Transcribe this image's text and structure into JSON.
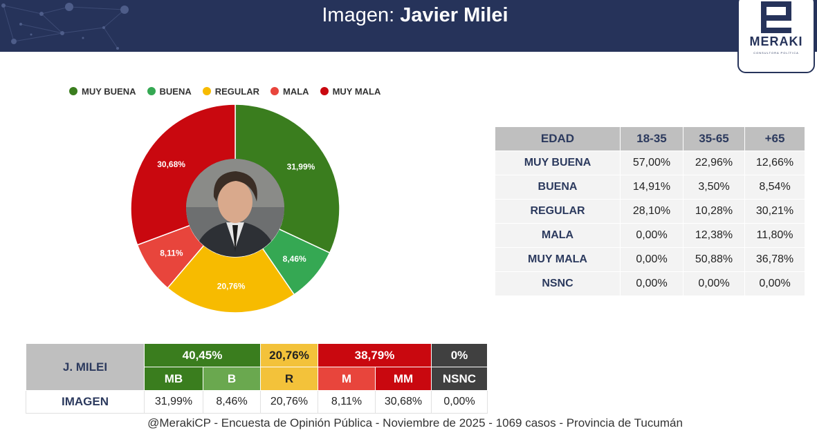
{
  "header": {
    "title_prefix": "Imagen:",
    "title_name": "Javier Milei"
  },
  "logo": {
    "text": "MERAKI",
    "sub": "CONSULTORA POLÍTICA"
  },
  "colors": {
    "muy_buena": "#3a7d1e",
    "buena": "#35a853",
    "regular": "#f7bb00",
    "mala": "#e8453c",
    "muy_mala": "#c9080f",
    "nsnc": "#404040",
    "navy": "#26335a"
  },
  "chart_data": {
    "type": "pie",
    "legend_position": "top",
    "series": [
      {
        "name": "MUY BUENA",
        "value": 31.99,
        "label": "31,99%",
        "color": "#3a7d1e"
      },
      {
        "name": "BUENA",
        "value": 8.46,
        "label": "8,46%",
        "color": "#35a853"
      },
      {
        "name": "REGULAR",
        "value": 20.76,
        "label": "20,76%",
        "color": "#f7bb00"
      },
      {
        "name": "MALA",
        "value": 8.11,
        "label": "8,11%",
        "color": "#e8453c"
      },
      {
        "name": "MUY MALA",
        "value": 30.68,
        "label": "30,68%",
        "color": "#c9080f"
      }
    ]
  },
  "age_table": {
    "headers": [
      "EDAD",
      "18-35",
      "35-65",
      "+65"
    ],
    "rows": [
      {
        "label": "MUY BUENA",
        "values": [
          "57,00%",
          "22,96%",
          "12,66%"
        ]
      },
      {
        "label": "BUENA",
        "values": [
          "14,91%",
          "3,50%",
          "8,54%"
        ]
      },
      {
        "label": "REGULAR",
        "values": [
          "28,10%",
          "10,28%",
          "30,21%"
        ]
      },
      {
        "label": "MALA",
        "values": [
          "0,00%",
          "12,38%",
          "11,80%"
        ]
      },
      {
        "label": "MUY MALA",
        "values": [
          "0,00%",
          "50,88%",
          "36,78%"
        ]
      },
      {
        "label": "NSNC",
        "values": [
          "0,00%",
          "0,00%",
          "0,00%"
        ]
      }
    ]
  },
  "summary_table": {
    "name": "J. MILEI",
    "groups": {
      "positive": "40,45%",
      "regular": "20,76%",
      "negative": "38,79%",
      "nsnc": "0%"
    },
    "codes": [
      "MB",
      "B",
      "R",
      "M",
      "MM",
      "NSNC"
    ],
    "row_label": "IMAGEN",
    "values": [
      "31,99%",
      "8,46%",
      "20,76%",
      "8,11%",
      "30,68%",
      "0,00%"
    ]
  },
  "footer": "@MerakiCP - Encuesta de Opinión Pública - Noviembre de 2025 - 1069 casos - Provincia de Tucumán"
}
